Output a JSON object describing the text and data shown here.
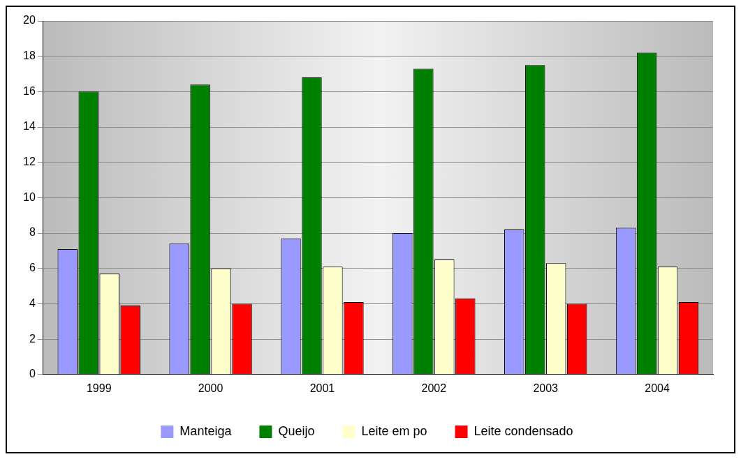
{
  "chart_data": {
    "type": "bar",
    "categories": [
      "1999",
      "2000",
      "2001",
      "2002",
      "2003",
      "2004"
    ],
    "series": [
      {
        "name": "Manteiga",
        "color": "#9999ff",
        "values": [
          7.1,
          7.4,
          7.7,
          8.0,
          8.2,
          8.3
        ]
      },
      {
        "name": "Queijo",
        "color": "#008000",
        "values": [
          16.0,
          16.4,
          16.8,
          17.3,
          17.5,
          18.2
        ]
      },
      {
        "name": "Leite em po",
        "color": "#ffffcc",
        "values": [
          5.7,
          6.0,
          6.1,
          6.5,
          6.3,
          6.1
        ]
      },
      {
        "name": "Leite condensado",
        "color": "#ff0000",
        "values": [
          3.9,
          4.0,
          4.1,
          4.3,
          4.0,
          4.1
        ]
      }
    ],
    "ylim": [
      0,
      20
    ],
    "yticks": [
      0,
      2,
      4,
      6,
      8,
      10,
      12,
      14,
      16,
      18,
      20
    ],
    "grid": "y",
    "legend": "bottom"
  }
}
